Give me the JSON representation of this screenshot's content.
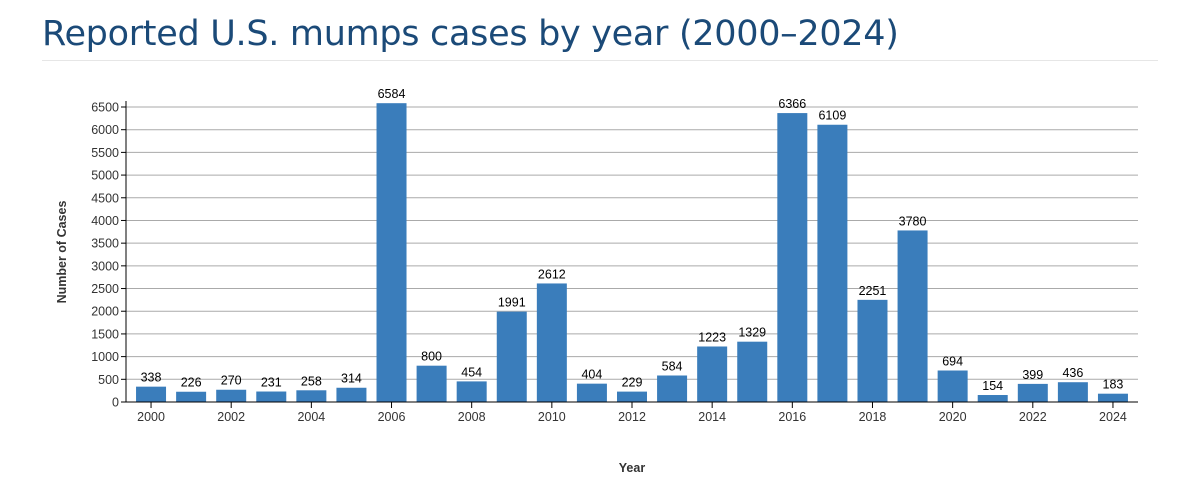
{
  "chart_data": {
    "type": "bar",
    "title": "Reported U.S. mumps cases by year (2000–2024)",
    "xlabel": "Year",
    "ylabel": "Number of Cases",
    "ylim": [
      0,
      6500
    ],
    "yticks": [
      0,
      500,
      1000,
      1500,
      2000,
      2500,
      3000,
      3500,
      4000,
      4500,
      5000,
      5500,
      6000,
      6500
    ],
    "grid": true,
    "bar_color": "#3a7dbb",
    "categories": [
      "2000",
      "2001",
      "2002",
      "2003",
      "2004",
      "2005",
      "2006",
      "2007",
      "2008",
      "2009",
      "2010",
      "2011",
      "2012",
      "2013",
      "2014",
      "2015",
      "2016",
      "2017",
      "2018",
      "2019",
      "2020",
      "2021",
      "2022",
      "2023",
      "2024"
    ],
    "xtick_labels": [
      "2000",
      "2002",
      "2004",
      "2006",
      "2008",
      "2010",
      "2012",
      "2014",
      "2016",
      "2018",
      "2020",
      "2022",
      "2024"
    ],
    "values": [
      338,
      226,
      270,
      231,
      258,
      314,
      6584,
      800,
      454,
      1991,
      2612,
      404,
      229,
      584,
      1223,
      1329,
      6366,
      6109,
      2251,
      3780,
      694,
      154,
      399,
      436,
      183
    ]
  }
}
